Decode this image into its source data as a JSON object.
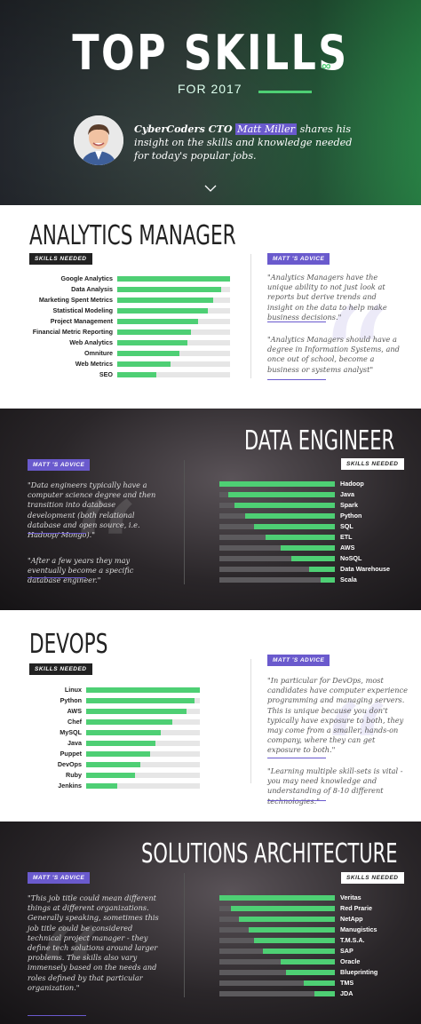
{
  "hero": {
    "title": "TOP SKILLS",
    "subtitle": "FOR 2017",
    "intro_prefix": "CyberCoders CTO",
    "intro_name": "Matt Miller",
    "intro_text": "shares his insight on the skills and knowledge needed for today's popular jobs.",
    "accent": "#4ecf74",
    "highlight": "#6a5acd"
  },
  "sections": [
    {
      "id": "analytics",
      "title": "ANALYTICS MANAGER",
      "skills_tag": "SKILLS NEEDED",
      "advice_tag": "MATT 'S ADVICE",
      "advice": [
        "\"Analytics Managers have the unique ability to not just look at reports but derive trends and insight on the data to help make business decisions.\"",
        "\"Analytics Managers should have a degree in Information Systems, and once out of school, become a business or systems analyst\""
      ],
      "skills": [
        {
          "name": "Google Analytics",
          "value": 1.0
        },
        {
          "name": "Data Analysis",
          "value": 0.92
        },
        {
          "name": "Marketing Spent Metrics",
          "value": 0.85
        },
        {
          "name": "Statistical Modeling",
          "value": 0.8
        },
        {
          "name": "Project Management",
          "value": 0.72
        },
        {
          "name": "Financial Metric Reporting",
          "value": 0.65
        },
        {
          "name": "Web Analytics",
          "value": 0.62
        },
        {
          "name": "Omniture",
          "value": 0.55
        },
        {
          "name": "Web Metrics",
          "value": 0.47
        },
        {
          "name": "SEO",
          "value": 0.35
        }
      ]
    },
    {
      "id": "data-engineer",
      "title": "DATA ENGINEER",
      "skills_tag": "SKILLS NEEDED",
      "advice_tag": "MATT 'S ADVICE",
      "advice": [
        "\"Data engineers typically have a computer science degree and then transition into database development (both relational database and open source, i.e. Hadoop/ Mongo).\"",
        "\"After a few years they may eventually become a specific database engineer.\""
      ],
      "skills": [
        {
          "name": "Hadoop",
          "value": 1.0
        },
        {
          "name": "Java",
          "value": 0.92
        },
        {
          "name": "Spark",
          "value": 0.87
        },
        {
          "name": "Python",
          "value": 0.78
        },
        {
          "name": "SQL",
          "value": 0.7
        },
        {
          "name": "ETL",
          "value": 0.6
        },
        {
          "name": "AWS",
          "value": 0.47
        },
        {
          "name": "NoSQL",
          "value": 0.38
        },
        {
          "name": "Data Warehouse",
          "value": 0.22
        },
        {
          "name": "Scala",
          "value": 0.12
        }
      ]
    },
    {
      "id": "devops",
      "title": "DEVOPS",
      "skills_tag": "SKILLS NEEDED",
      "advice_tag": "MATT 'S ADVICE",
      "advice": [
        "\"In particular for DevOps, most candidates have computer experience programming and managing servers. This is unique because you don't typically have exposure to both, they may come from a smaller, hands-on company, where they can get exposure to both.\"",
        "\"Learning multiple skill-sets is vital - you may need knowledge and understanding of 8-10 different technologies.\""
      ],
      "skills": [
        {
          "name": "Linux",
          "value": 1.0
        },
        {
          "name": "Python",
          "value": 0.95
        },
        {
          "name": "AWS",
          "value": 0.88
        },
        {
          "name": "Chef",
          "value": 0.76
        },
        {
          "name": "MySQL",
          "value": 0.66
        },
        {
          "name": "Java",
          "value": 0.61
        },
        {
          "name": "Puppet",
          "value": 0.56
        },
        {
          "name": "DevOps",
          "value": 0.48
        },
        {
          "name": "Ruby",
          "value": 0.43
        },
        {
          "name": "Jenkins",
          "value": 0.27
        }
      ]
    },
    {
      "id": "solutions",
      "title": "SOLUTIONS ARCHITECTURE",
      "skills_tag": "SKILLS NEEDED",
      "advice_tag": "MATT 'S ADVICE",
      "advice": [
        "\"This job title could mean different things at different organizations. Generally speaking, sometimes this job title could be considered technical project manager - they define tech solutions around larger problems. The skills also vary immensely based on the needs and roles defined by that particular organization.\""
      ],
      "skills": [
        {
          "name": "Veritas",
          "value": 1.0
        },
        {
          "name": "Red Prarie",
          "value": 0.9
        },
        {
          "name": "NetApp",
          "value": 0.83
        },
        {
          "name": "Manugistics",
          "value": 0.75
        },
        {
          "name": "T.M.S.A.",
          "value": 0.7
        },
        {
          "name": "SAP",
          "value": 0.62
        },
        {
          "name": "Oracle",
          "value": 0.47
        },
        {
          "name": "Blueprinting",
          "value": 0.42
        },
        {
          "name": "TMS",
          "value": 0.27
        },
        {
          "name": "JDA",
          "value": 0.18
        }
      ]
    }
  ]
}
